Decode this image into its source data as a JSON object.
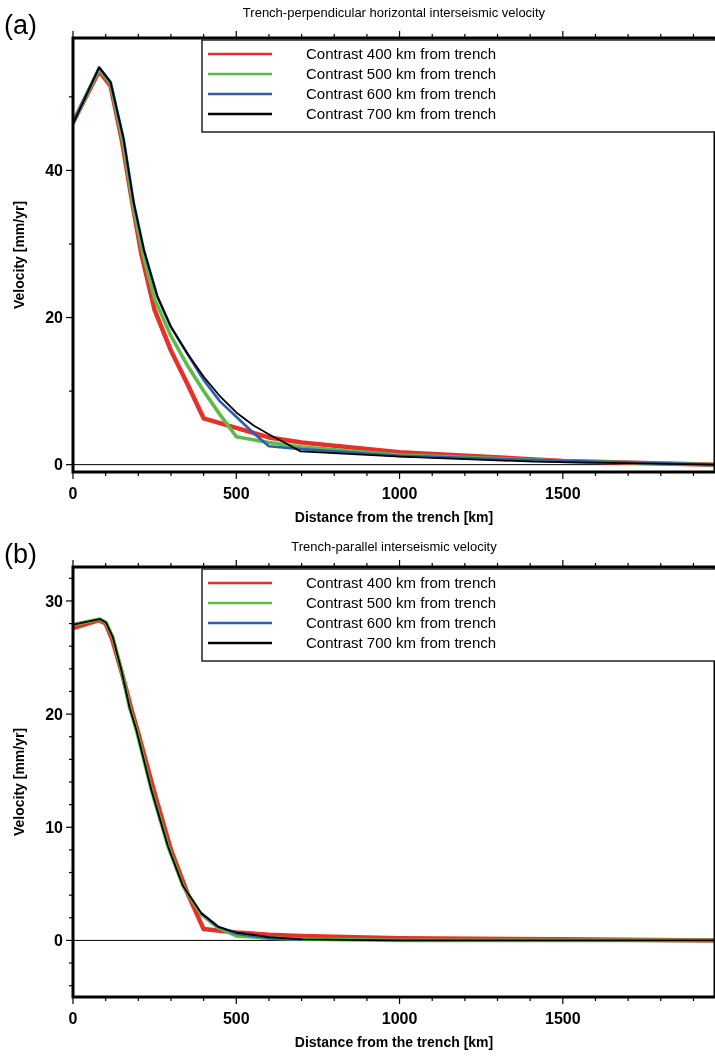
{
  "chart_data": [
    {
      "type": "line",
      "title": "Trench-perpendicular horizontal interseismic velocity",
      "xlabel": "Distance from the trench [km]",
      "ylabel": "Velocity [mm/yr]",
      "annotations": [
        "(a)"
      ],
      "legend": "top",
      "marker": "none",
      "line_style": "solid",
      "grid": false,
      "xlim": [
        0,
        1966
      ],
      "xticks": [
        0,
        {
          "value": 100,
          "label": null
        },
        {
          "value": 200,
          "label": null
        },
        {
          "value": 300,
          "label": null
        },
        {
          "value": 400,
          "label": null
        },
        500,
        {
          "value": 600,
          "label": null
        },
        {
          "value": 700,
          "label": null
        },
        {
          "value": 800,
          "label": null
        },
        {
          "value": 900,
          "label": null
        },
        1000,
        {
          "value": 1100,
          "label": null
        },
        {
          "value": 1200,
          "label": null
        },
        {
          "value": 1300,
          "label": null
        },
        {
          "value": 1400,
          "label": null
        },
        1500,
        {
          "value": 1600,
          "label": null
        },
        {
          "value": 1700,
          "label": null
        },
        {
          "value": 1800,
          "label": null
        },
        {
          "value": 1900,
          "label": null
        }
      ],
      "ylim": [
        -1,
        58
      ],
      "yticks": [
        0,
        {
          "value": 10,
          "label": null
        },
        20,
        {
          "value": 30,
          "label": null
        },
        40,
        {
          "value": 50,
          "label": null
        }
      ],
      "ref_lines": [
        {
          "axis": "y",
          "value": 0,
          "color": "#000000"
        }
      ],
      "series": [
        {
          "name": "Contrast 400 km from trench",
          "color": "#e8302a",
          "x": [
            0,
            80,
            115,
            150,
            180,
            210,
            250,
            300,
            350,
            400,
            500,
            600,
            700,
            1000,
            1500,
            1966
          ],
          "values": [
            46.5,
            53.5,
            51.5,
            44,
            36,
            28.5,
            21,
            15.5,
            11,
            6.3,
            5.0,
            3.7,
            3.0,
            1.7,
            0.5,
            0
          ]
        },
        {
          "name": "Contrast 500 km from trench",
          "color": "#5dbb46",
          "x": [
            0,
            80,
            115,
            155,
            185,
            215,
            250,
            300,
            350,
            400,
            450,
            500,
            600,
            700,
            1000,
            1500,
            1966
          ],
          "values": [
            46.5,
            53.8,
            51.8,
            43.5,
            35,
            28.5,
            22.5,
            17.5,
            13.5,
            10,
            6.8,
            3.8,
            3.0,
            2.4,
            1.3,
            0.5,
            0
          ]
        },
        {
          "name": "Contrast 600 km from trench",
          "color": "#2d5fad",
          "x": [
            0,
            80,
            115,
            155,
            186,
            217,
            258,
            299,
            350,
            400,
            450,
            500,
            550,
            600,
            700,
            1000,
            1500,
            1966
          ],
          "values": [
            46.5,
            54,
            52,
            44.3,
            35.6,
            29.2,
            22.9,
            18.8,
            15.1,
            11.5,
            8.6,
            6.5,
            4.4,
            2.5,
            2.1,
            1.2,
            0.5,
            0
          ]
        },
        {
          "name": "Contrast 700 km from trench",
          "color": "#000000",
          "x": [
            0,
            80,
            115,
            155,
            186,
            217,
            258,
            299,
            350,
            401,
            452,
            500,
            554,
            605,
            656,
            697,
            1002,
            1410,
            1966
          ],
          "values": [
            46.3,
            54,
            52,
            44.3,
            35.6,
            29.2,
            22.9,
            18.8,
            15.1,
            11.9,
            9.2,
            7.1,
            5.3,
            4.0,
            2.8,
            1.8,
            1.1,
            0.4,
            0
          ]
        }
      ]
    },
    {
      "type": "line",
      "title": "Trench-parallel interseismic velocity",
      "xlabel": "Distance from the trench [km]",
      "ylabel": "Velocity [mm/yr]",
      "annotations": [
        "(b)"
      ],
      "legend": "top",
      "marker": "none",
      "line_style": "solid",
      "grid": false,
      "xlim": [
        0,
        1966
      ],
      "xticks": [
        0,
        {
          "value": 100,
          "label": null
        },
        {
          "value": 200,
          "label": null
        },
        {
          "value": 300,
          "label": null
        },
        {
          "value": 400,
          "label": null
        },
        500,
        {
          "value": 600,
          "label": null
        },
        {
          "value": 700,
          "label": null
        },
        {
          "value": 800,
          "label": null
        },
        {
          "value": 900,
          "label": null
        },
        1000,
        {
          "value": 1100,
          "label": null
        },
        {
          "value": 1200,
          "label": null
        },
        {
          "value": 1300,
          "label": null
        },
        {
          "value": 1400,
          "label": null
        },
        1500,
        {
          "value": 1600,
          "label": null
        },
        {
          "value": 1700,
          "label": null
        },
        {
          "value": 1800,
          "label": null
        },
        {
          "value": 1900,
          "label": null
        }
      ],
      "ylim": [
        -5,
        33
      ],
      "yticks": [
        {
          "value": -4,
          "label": null
        },
        {
          "value": -2,
          "label": null
        },
        0,
        {
          "value": 2,
          "label": null
        },
        {
          "value": 4,
          "label": null
        },
        {
          "value": 6,
          "label": null
        },
        {
          "value": 8,
          "label": null
        },
        10,
        {
          "value": 12,
          "label": null
        },
        {
          "value": 14,
          "label": null
        },
        {
          "value": 16,
          "label": null
        },
        {
          "value": 18,
          "label": null
        },
        20,
        {
          "value": 22,
          "label": null
        },
        {
          "value": 24,
          "label": null
        },
        {
          "value": 26,
          "label": null
        },
        {
          "value": 28,
          "label": null
        },
        30,
        {
          "value": 32,
          "label": null
        }
      ],
      "ref_lines": [
        {
          "axis": "y",
          "value": 0,
          "color": "#000000"
        }
      ],
      "series": [
        {
          "name": "Contrast 400 km from trench",
          "color": "#e8302a",
          "x": [
            0,
            80,
            100,
            120,
            150,
            180,
            200,
            250,
            300,
            350,
            400,
            500,
            600,
            700,
            1000,
            1500,
            1966
          ],
          "values": [
            27.6,
            28.3,
            28.0,
            26.6,
            23.6,
            20.3,
            18.3,
            13.0,
            8.0,
            4.2,
            1.0,
            0.7,
            0.5,
            0.4,
            0.2,
            0.1,
            0
          ]
        },
        {
          "name": "Contrast 500 km from trench",
          "color": "#5dbb46",
          "x": [
            0,
            82,
            101,
            122,
            148,
            173,
            194,
            240,
            291,
            337,
            393,
            445,
            500,
            600,
            700,
            1000,
            1500,
            1966
          ],
          "values": [
            27.9,
            28.4,
            28.1,
            26.8,
            23.9,
            20.6,
            18.6,
            13.3,
            8.3,
            4.8,
            2.3,
            1.1,
            0.4,
            0.2,
            0.1,
            0,
            0,
            0
          ]
        },
        {
          "name": "Contrast 600 km from trench",
          "color": "#2d5fad",
          "x": [
            393,
            445,
            500,
            600,
            700
          ],
          "values": [
            2.4,
            1.2,
            0.6,
            0.2,
            0.1
          ]
        },
        {
          "name": "Contrast 700 km from trench",
          "color": "#000000",
          "x": [
            0,
            82,
            101,
            122,
            148,
            173,
            194,
            240,
            291,
            337,
            393,
            445,
            500,
            600,
            700,
            1000,
            1500,
            1966
          ],
          "values": [
            27.9,
            28.4,
            28.1,
            26.8,
            23.9,
            20.6,
            18.6,
            13.3,
            8.3,
            4.8,
            2.4,
            1.2,
            0.7,
            0.3,
            0.1,
            0,
            0,
            0
          ]
        }
      ]
    }
  ]
}
